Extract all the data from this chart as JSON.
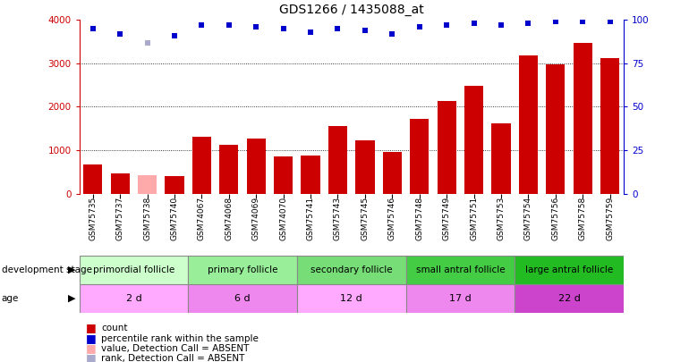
{
  "title": "GDS1266 / 1435088_at",
  "samples": [
    "GSM75735",
    "GSM75737",
    "GSM75738",
    "GSM75740",
    "GSM74067",
    "GSM74068",
    "GSM74069",
    "GSM74070",
    "GSM75741",
    "GSM75743",
    "GSM75745",
    "GSM75746",
    "GSM75748",
    "GSM75749",
    "GSM75751",
    "GSM75753",
    "GSM75754",
    "GSM75756",
    "GSM75758",
    "GSM75759"
  ],
  "counts": [
    680,
    460,
    430,
    410,
    1310,
    1130,
    1270,
    860,
    870,
    1560,
    1220,
    960,
    1730,
    2130,
    2490,
    1620,
    3180,
    2970,
    3480,
    3120
  ],
  "absent_count_indices": [
    2
  ],
  "percentile_ranks": [
    95,
    92,
    87,
    91,
    97,
    97,
    96,
    95,
    93,
    95,
    94,
    92,
    96,
    97,
    98,
    97,
    98,
    99,
    99,
    99
  ],
  "absent_rank_indices": [
    2
  ],
  "ylim_left": [
    0,
    4000
  ],
  "ylim_right": [
    0,
    100
  ],
  "yticks_left": [
    0,
    1000,
    2000,
    3000,
    4000
  ],
  "yticks_right": [
    0,
    25,
    50,
    75,
    100
  ],
  "bar_color_normal": "#cc0000",
  "bar_color_absent": "#ffaaaa",
  "dot_color_normal": "#0000cc",
  "dot_color_absent": "#aaaacc",
  "groups": [
    {
      "label": "primordial follicle",
      "age": "2 d",
      "start": 0,
      "end": 4,
      "bg_stage": "#ccffcc",
      "bg_age": "#ffaaff"
    },
    {
      "label": "primary follicle",
      "age": "6 d",
      "start": 4,
      "end": 8,
      "bg_stage": "#99ee99",
      "bg_age": "#ee88ee"
    },
    {
      "label": "secondary follicle",
      "age": "12 d",
      "start": 8,
      "end": 12,
      "bg_stage": "#77dd77",
      "bg_age": "#ffaaff"
    },
    {
      "label": "small antral follicle",
      "age": "17 d",
      "start": 12,
      "end": 16,
      "bg_stage": "#44cc44",
      "bg_age": "#ee88ee"
    },
    {
      "label": "large antral follicle",
      "age": "22 d",
      "start": 16,
      "end": 20,
      "bg_stage": "#22bb22",
      "bg_age": "#cc44cc"
    }
  ],
  "legend_items": [
    {
      "label": "count",
      "color": "#cc0000"
    },
    {
      "label": "percentile rank within the sample",
      "color": "#0000cc"
    },
    {
      "label": "value, Detection Call = ABSENT",
      "color": "#ffaaaa"
    },
    {
      "label": "rank, Detection Call = ABSENT",
      "color": "#aaaacc"
    }
  ]
}
